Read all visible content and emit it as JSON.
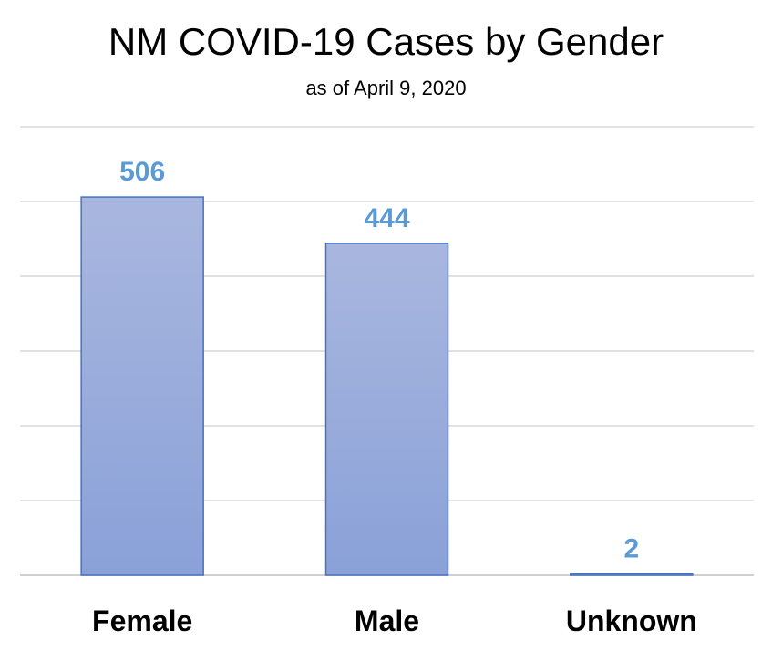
{
  "chart_data": {
    "type": "bar",
    "title": "NM COVID-19 Cases by Gender",
    "subtitle": "as of April 9, 2020",
    "categories": [
      "Female",
      "Male",
      "Unknown"
    ],
    "values": [
      506,
      444,
      2
    ],
    "ylim": [
      0,
      600
    ],
    "ytick_step": 100,
    "grid": true,
    "legend": "none",
    "xlabel": "",
    "ylabel": ""
  },
  "colors": {
    "bar_top": "#a9b7df",
    "bar_bottom": "#8aa1d8",
    "bar_stroke": "#4472c4",
    "data_label": "#5b9bd5",
    "gridline": "#d9d9d9",
    "axis_line": "#d0d0d0"
  }
}
